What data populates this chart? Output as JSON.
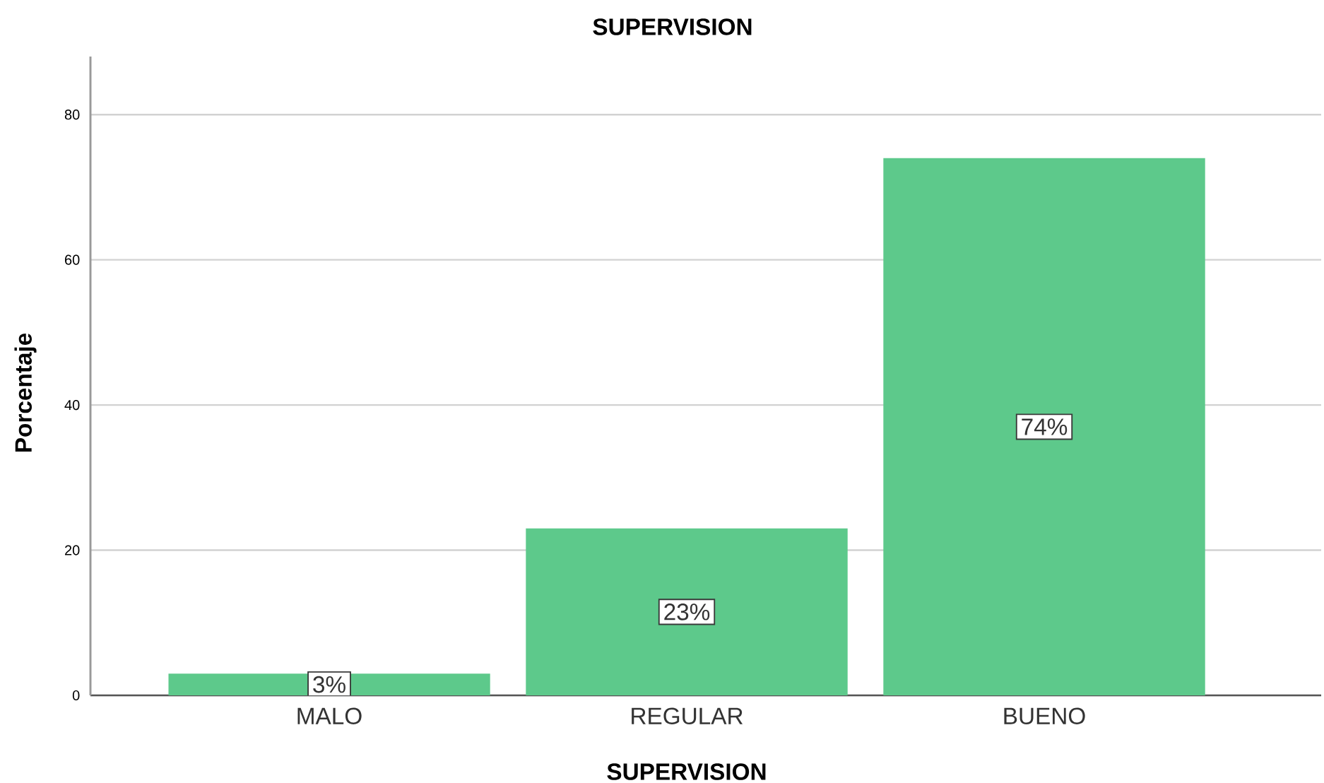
{
  "chart_data": {
    "type": "bar",
    "title": "SUPERVISION",
    "xlabel": "SUPERVISION",
    "ylabel": "Porcentaje",
    "categories": [
      "MALO",
      "REGULAR",
      "BUENO"
    ],
    "values": [
      3,
      23,
      74
    ],
    "value_labels": [
      "3%",
      "23%",
      "74%"
    ],
    "color": "#5dc98b",
    "ylim": [
      0,
      88
    ],
    "yticks": [
      0,
      20,
      40,
      60,
      80
    ],
    "grid": "y"
  }
}
